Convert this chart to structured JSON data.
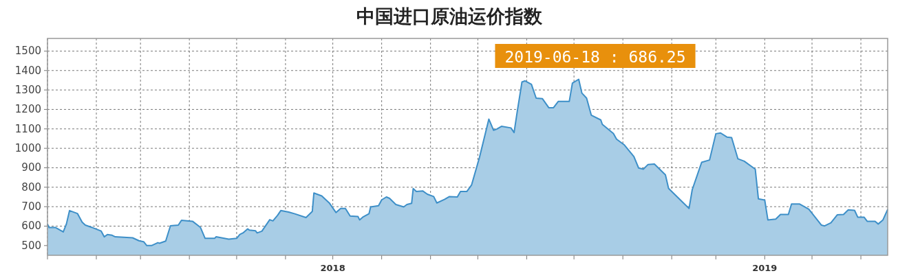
{
  "chart_data": {
    "type": "area",
    "title": "中国进口原油运价指数",
    "x": [
      "2018-01-01",
      "2018-01-02",
      "2018-01-06",
      "2018-01-11",
      "2018-01-13",
      "2018-01-15",
      "2018-01-20",
      "2018-01-23",
      "2018-01-25",
      "2018-01-29",
      "2018-02-04",
      "2018-02-06",
      "2018-02-08",
      "2018-02-11",
      "2018-02-13",
      "2018-02-24",
      "2018-02-28",
      "2018-03-03",
      "2018-03-05",
      "2018-03-08",
      "2018-03-12",
      "2018-03-13",
      "2018-03-17",
      "2018-03-20",
      "2018-03-25",
      "2018-03-27",
      "2018-04-03",
      "2018-04-08",
      "2018-04-11",
      "2018-04-17",
      "2018-04-18",
      "2018-04-26",
      "2018-05-01",
      "2018-05-03",
      "2018-05-05",
      "2018-05-08",
      "2018-05-09",
      "2018-05-13",
      "2018-05-14",
      "2018-05-17",
      "2018-05-22",
      "2018-05-24",
      "2018-05-27",
      "2018-05-29",
      "2018-06-03",
      "2018-06-07",
      "2018-06-14",
      "2018-06-18",
      "2018-06-19",
      "2018-06-24",
      "2018-06-29",
      "2018-07-03",
      "2018-07-06",
      "2018-07-09",
      "2018-07-12",
      "2018-07-17",
      "2018-07-18",
      "2018-07-20",
      "2018-07-24",
      "2018-07-25",
      "2018-07-30",
      "2018-08-01",
      "2018-08-04",
      "2018-08-06",
      "2018-08-10",
      "2018-08-15",
      "2018-08-17",
      "2018-08-20",
      "2018-08-21",
      "2018-08-23",
      "2018-08-27",
      "2018-08-30",
      "2018-09-03",
      "2018-09-05",
      "2018-09-10",
      "2018-09-13",
      "2018-09-18",
      "2018-09-20",
      "2018-09-24",
      "2018-09-27",
      "2018-10-02",
      "2018-10-08",
      "2018-10-11",
      "2018-10-13",
      "2018-10-16",
      "2018-10-22",
      "2018-10-24",
      "2018-10-26",
      "2018-10-29",
      "2018-10-31",
      "2018-11-04",
      "2018-11-07",
      "2018-11-11",
      "2018-11-15",
      "2018-11-18",
      "2018-11-21",
      "2018-11-28",
      "2018-11-30",
      "2018-12-04",
      "2018-12-06",
      "2018-12-09",
      "2018-12-12",
      "2018-12-18",
      "2018-12-19",
      "2018-12-26",
      "2018-12-28",
      "2019-01-02",
      "2019-01-08",
      "2019-01-11",
      "2019-01-14",
      "2019-01-17",
      "2019-01-21",
      "2019-01-28",
      "2019-01-30",
      "2019-02-12",
      "2019-02-14",
      "2019-02-20",
      "2019-02-25",
      "2019-03-01",
      "2019-03-04",
      "2019-03-08",
      "2019-03-11",
      "2019-03-15",
      "2019-03-19",
      "2019-03-26",
      "2019-03-28",
      "2019-04-01",
      "2019-04-03",
      "2019-04-08",
      "2019-04-11",
      "2019-04-16",
      "2019-04-18",
      "2019-04-23",
      "2019-04-29",
      "2019-05-07",
      "2019-05-09",
      "2019-05-13",
      "2019-05-17",
      "2019-05-21",
      "2019-05-24",
      "2019-05-28",
      "2019-05-30",
      "2019-06-03",
      "2019-06-05",
      "2019-06-10",
      "2019-06-12",
      "2019-06-15",
      "2019-06-18"
    ],
    "series": [
      {
        "color": "#3d8fc8",
        "values": [
          611,
          593,
          593,
          570,
          611,
          680,
          665,
          620,
          605,
          594,
          575,
          545,
          557,
          553,
          545,
          540,
          525,
          520,
          500,
          500,
          515,
          512,
          523,
          602,
          605,
          630,
          625,
          594,
          537,
          537,
          545,
          533,
          537,
          557,
          565,
          586,
          580,
          576,
          565,
          574,
          633,
          627,
          656,
          680,
          672,
          663,
          644,
          676,
          770,
          755,
          717,
          670,
          691,
          691,
          652,
          649,
          632,
          646,
          664,
          699,
          705,
          735,
          750,
          743,
          711,
          699,
          711,
          717,
          793,
          778,
          781,
          764,
          752,
          719,
          738,
          752,
          750,
          778,
          778,
          811,
          952,
          1150,
          1093,
          1099,
          1113,
          1105,
          1081,
          1189,
          1341,
          1347,
          1329,
          1258,
          1255,
          1209,
          1209,
          1241,
          1241,
          1335,
          1355,
          1284,
          1258,
          1170,
          1146,
          1123,
          1076,
          1047,
          1017,
          958,
          899,
          893,
          917,
          919,
          864,
          794,
          691,
          787,
          928,
          940,
          1075,
          1079,
          1058,
          1055,
          946,
          934,
          893,
          740,
          734,
          632,
          636,
          660,
          660,
          714,
          714,
          687,
          605,
          601,
          617,
          658,
          660,
          684,
          681,
          646,
          646,
          625,
          625,
          611,
          632,
          686
        ]
      }
    ],
    "xlim": [
      "2018-01-01",
      "2019-06-18"
    ],
    "xticks": [
      {
        "value": "2018-01-01",
        "label": null
      },
      {
        "value": "2018-02-01",
        "label": null
      },
      {
        "value": "2018-03-01",
        "label": null
      },
      {
        "value": "2018-04-01",
        "label": null
      },
      {
        "value": "2018-05-01",
        "label": null
      },
      {
        "value": "2018-06-01",
        "label": null
      },
      {
        "value": "2018-07-01",
        "label": "2018"
      },
      {
        "value": "2018-08-01",
        "label": null
      },
      {
        "value": "2018-09-01",
        "label": null
      },
      {
        "value": "2018-10-01",
        "label": null
      },
      {
        "value": "2018-11-01",
        "label": null
      },
      {
        "value": "2018-12-01",
        "label": null
      },
      {
        "value": "2019-01-01",
        "label": null
      },
      {
        "value": "2019-02-01",
        "label": null
      },
      {
        "value": "2019-03-01",
        "label": null
      },
      {
        "value": "2019-04-01",
        "label": "2019"
      },
      {
        "value": "2019-05-01",
        "label": null
      },
      {
        "value": "2019-06-01",
        "label": null
      }
    ],
    "ylim": [
      450,
      1565
    ],
    "yticks": [
      500,
      600,
      700,
      800,
      900,
      1000,
      1100,
      1200,
      1300,
      1400,
      1500
    ],
    "grid": true,
    "annotations": [
      "2019-06-18 : 686.25"
    ]
  }
}
